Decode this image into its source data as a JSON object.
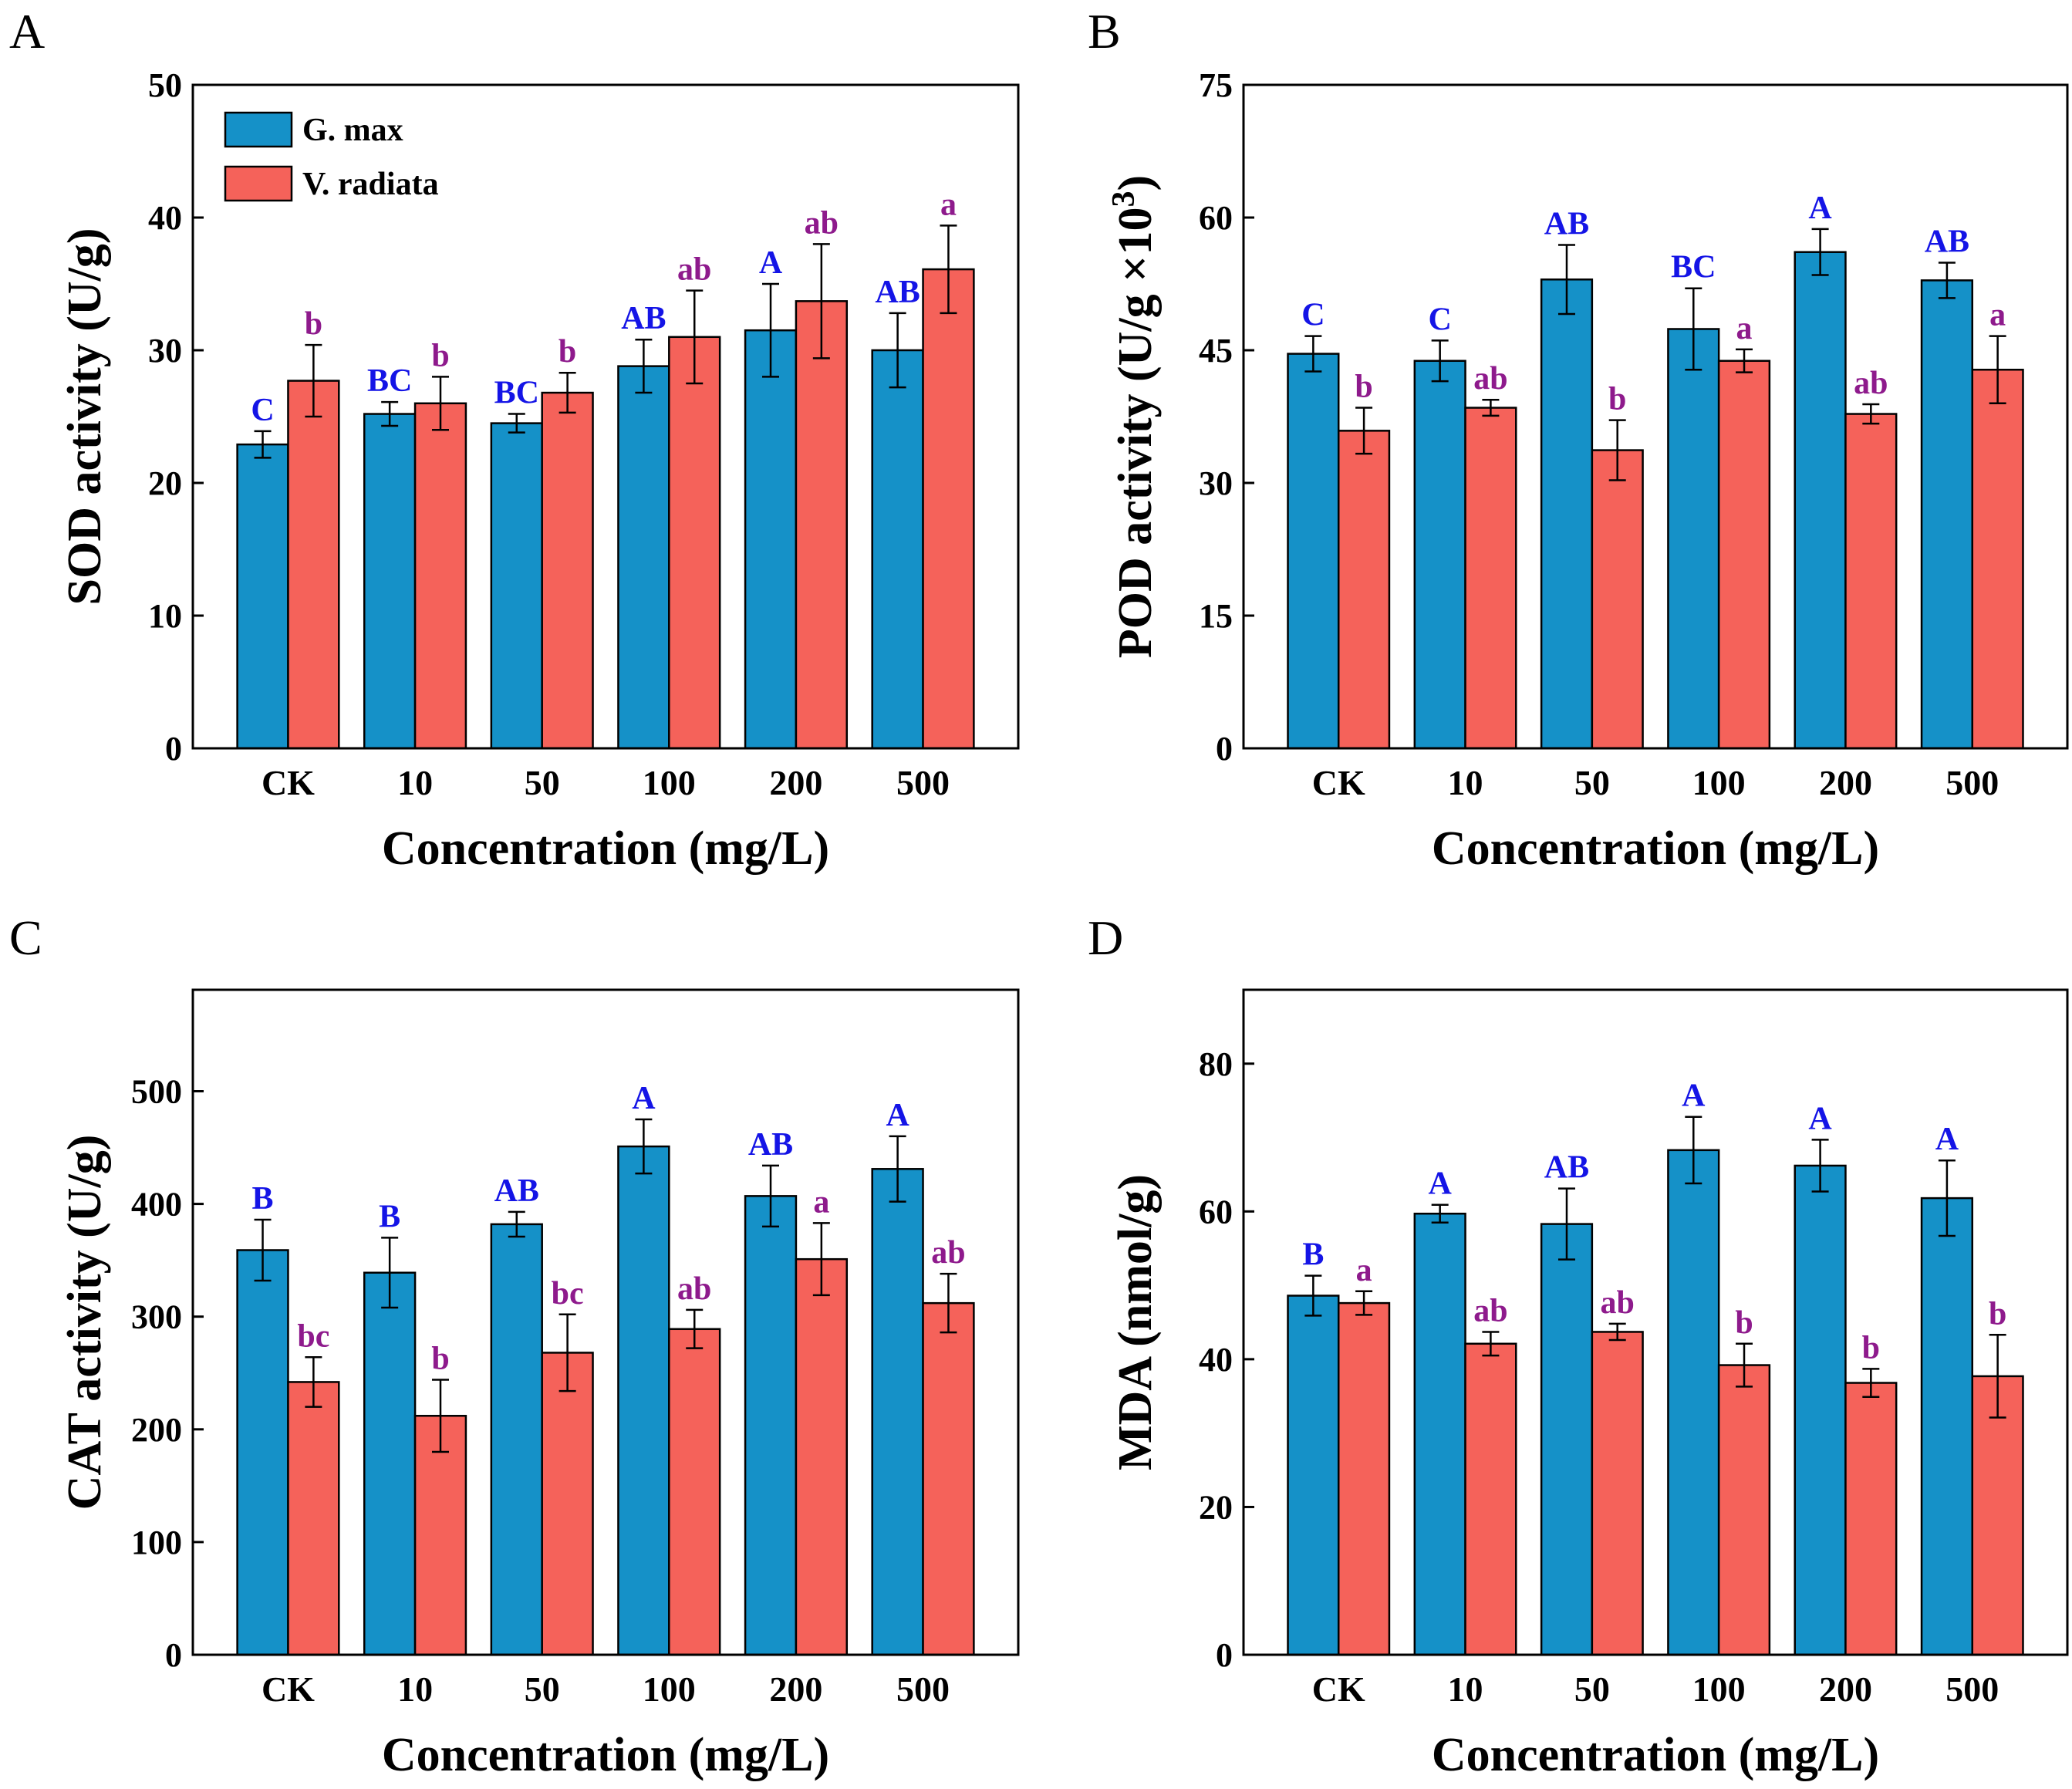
{
  "colors": {
    "gmax": "#1591c8",
    "vradiata": "#f5625a",
    "gmax_letters": "#1414e6",
    "vradiata_letters": "#8e1a8c"
  },
  "legend": {
    "series1": "G. max",
    "series2": "V. radiata"
  },
  "chart_data": [
    {
      "panel": "A",
      "type": "bar",
      "categories": [
        "CK",
        "10",
        "50",
        "100",
        "200",
        "500"
      ],
      "xlabel": "Concentration (mg/L)",
      "ylabel": "SOD activity (U/g)",
      "ylim": [
        0,
        50
      ],
      "yticks": [
        0,
        10,
        20,
        30,
        40,
        50
      ],
      "legend": "top-left",
      "series": [
        {
          "name": "G. max",
          "values": [
            22.9,
            25.2,
            24.5,
            28.8,
            31.5,
            30.0
          ],
          "errors": [
            1.0,
            0.9,
            0.7,
            2.0,
            3.5,
            2.8
          ],
          "letters": [
            "C",
            "BC",
            "BC",
            "AB",
            "A",
            "AB"
          ]
        },
        {
          "name": "V. radiata",
          "values": [
            27.7,
            26.0,
            26.8,
            31.0,
            33.7,
            36.1
          ],
          "errors": [
            2.7,
            2.0,
            1.5,
            3.5,
            4.3,
            3.3
          ],
          "letters": [
            "b",
            "b",
            "b",
            "ab",
            "ab",
            "a"
          ]
        }
      ]
    },
    {
      "panel": "B",
      "type": "bar",
      "categories": [
        "CK",
        "10",
        "50",
        "100",
        "200",
        "500"
      ],
      "xlabel": "Concentration (mg/L)",
      "ylabel": "POD activity (U/g ×10",
      "ylabel_sup": "3",
      "ylabel_end": ")",
      "ylim": [
        0,
        75
      ],
      "yticks": [
        0,
        15,
        30,
        45,
        60,
        75
      ],
      "series": [
        {
          "name": "G. max",
          "values": [
            44.6,
            43.8,
            53.0,
            47.4,
            56.1,
            52.9
          ],
          "errors": [
            2.0,
            2.3,
            3.9,
            4.6,
            2.6,
            2.0
          ],
          "letters": [
            "C",
            "C",
            "AB",
            "BC",
            "A",
            "AB"
          ]
        },
        {
          "name": "V. radiata",
          "values": [
            35.9,
            38.5,
            33.7,
            43.8,
            37.8,
            42.8
          ],
          "errors": [
            2.6,
            0.9,
            3.4,
            1.3,
            1.1,
            3.8
          ],
          "letters": [
            "b",
            "ab",
            "b",
            "a",
            "ab",
            "a"
          ]
        }
      ]
    },
    {
      "panel": "C",
      "type": "bar",
      "categories": [
        "CK",
        "10",
        "50",
        "100",
        "200",
        "500"
      ],
      "xlabel": "Concentration (mg/L)",
      "ylabel": "CAT activity (U/g)",
      "ylim": [
        0,
        590
      ],
      "yticks": [
        0,
        100,
        200,
        300,
        400,
        500
      ],
      "series": [
        {
          "name": "G. max",
          "values": [
            359,
            339,
            382,
            451,
            407,
            431
          ],
          "errors": [
            27,
            31,
            11,
            24,
            27,
            29
          ],
          "letters": [
            "B",
            "B",
            "AB",
            "A",
            "AB",
            "A"
          ]
        },
        {
          "name": "V. radiata",
          "values": [
            242,
            212,
            268,
            289,
            351,
            312
          ],
          "errors": [
            22,
            32,
            34,
            17,
            32,
            26
          ],
          "letters": [
            "bc",
            "b",
            "bc",
            "ab",
            "a",
            "ab"
          ]
        }
      ]
    },
    {
      "panel": "D",
      "type": "bar",
      "categories": [
        "CK",
        "10",
        "50",
        "100",
        "200",
        "500"
      ],
      "xlabel": "Concentration (mg/L)",
      "ylabel": "MDA (nmol/g)",
      "ylim": [
        0,
        90
      ],
      "yticks": [
        0,
        20,
        40,
        60,
        80
      ],
      "series": [
        {
          "name": "G. max",
          "values": [
            48.6,
            59.7,
            58.3,
            68.3,
            66.2,
            61.8
          ],
          "errors": [
            2.7,
            1.2,
            4.8,
            4.5,
            3.5,
            5.1
          ],
          "letters": [
            "B",
            "A",
            "AB",
            "A",
            "A",
            "A"
          ]
        },
        {
          "name": "V. radiata",
          "values": [
            47.6,
            42.1,
            43.7,
            39.2,
            36.8,
            37.7
          ],
          "errors": [
            1.6,
            1.6,
            1.1,
            2.9,
            1.9,
            5.6
          ],
          "letters": [
            "a",
            "ab",
            "ab",
            "b",
            "b",
            "b"
          ]
        }
      ]
    }
  ]
}
